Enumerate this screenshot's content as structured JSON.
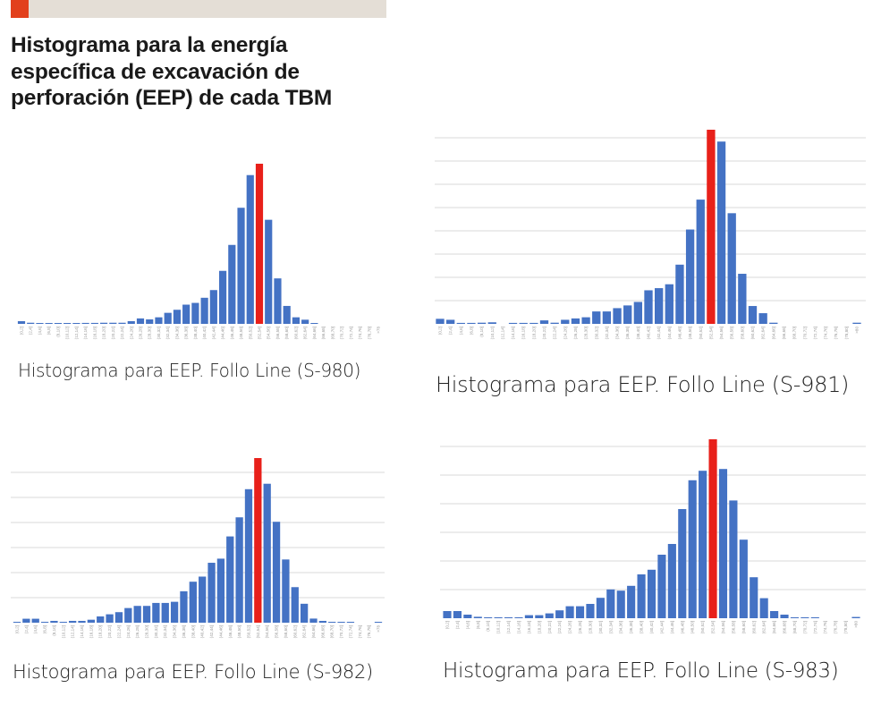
{
  "header": {
    "accent_color": "#e2401c",
    "title_lines": [
      "Histograma para la energía",
      "específica de excavación de",
      "perforación (EEP) de cada TBM"
    ]
  },
  "colors": {
    "bar": "#4472c4",
    "highlight": "#e8201a",
    "grid": "#d9d9d9",
    "tick_label": "#9a9a9a"
  },
  "captions": [
    "Histograma para EEP. Follo Line (S-980)",
    "Histograma para EEP. Follo Line (S-981)",
    "Histograma para EEP. Follo Line (S-982)",
    "Histograma para EEP. Follo Line (S-983)"
  ],
  "chart_data": [
    {
      "type": "bar",
      "title": "Histograma para EEP. Follo Line (S-980)",
      "xlabel": "",
      "ylabel": "",
      "highlight_index": 26,
      "grid": false,
      "categories": [
        "(0,2]",
        "(2,4]",
        "(4,6]",
        "(6,8]",
        "(8,10]",
        "(10,12]",
        "(12,14]",
        "(14,16]",
        "(16,18]",
        "(18,20]",
        "(20,22]",
        "(22,24]",
        "(24,26]",
        "(26,28]",
        "(28,30]",
        "(30,32]",
        "(32,34]",
        "(34,36]",
        "(36,38]",
        "(38,40]",
        "(40,42]",
        "(42,44]",
        "(44,46]",
        "(46,48]",
        "(48,50]",
        "(50,52]",
        "(52,54]",
        "(54,56]",
        "(56,58]",
        "(58,60]",
        "(60,62]",
        "(62,64]",
        "(64,66]",
        "(66,68]",
        "(68,70]",
        "(70,72]",
        "(72,74]",
        "(74,76]",
        "(76,78]",
        ">78"
      ],
      "values": [
        1.7,
        0.7,
        0.2,
        0.4,
        0.2,
        0.2,
        0.2,
        0.6,
        0.6,
        0.7,
        0.7,
        0.7,
        1.7,
        3.4,
        2.8,
        4.1,
        6.9,
        8.8,
        12,
        13.1,
        16.3,
        21.1,
        33.1,
        49.3,
        72.5,
        92.9,
        100,
        65,
        28.4,
        11.2,
        4.1,
        2.6,
        0.2,
        0,
        0,
        0,
        0,
        0,
        0,
        0
      ],
      "ylim": [
        0,
        100
      ]
    },
    {
      "type": "bar",
      "title": "Histograma para EEP. Follo Line (S-981)",
      "xlabel": "",
      "ylabel": "",
      "highlight_index": 26,
      "grid": true,
      "categories": [
        "(0,2]",
        "(2,4]",
        "(4,6]",
        "(6,8]",
        "(8,10]",
        "(10,12]",
        "(12,14]",
        "(14,16]",
        "(16,18]",
        "(18,20]",
        "(20,22]",
        "(22,24]",
        "(24,26]",
        "(26,28]",
        "(28,30]",
        "(30,32]",
        "(32,34]",
        "(34,36]",
        "(36,38]",
        "(38,40]",
        "(40,42]",
        "(42,44]",
        "(44,46]",
        "(46,48]",
        "(48,50]",
        "(50,52]",
        "(52,54]",
        "(54,56]",
        "(56,58]",
        "(58,60]",
        "(60,62]",
        "(62,64]",
        "(64,66]",
        "(66,68]",
        "(68,70]",
        "(70,72]",
        "(72,74]",
        "(74,76]",
        "(76,78]",
        "(78,80]",
        ">80"
      ],
      "values": [
        2.6,
        2.1,
        0.5,
        0.5,
        0.6,
        0.8,
        0,
        0.5,
        0.5,
        0.5,
        1.8,
        0.6,
        2.1,
        2.8,
        3.4,
        6.4,
        6.4,
        8.1,
        9.5,
        11.3,
        17.3,
        18.4,
        20.4,
        30.5,
        48.6,
        64,
        100,
        93.9,
        57,
        25.8,
        9.2,
        5.5,
        0.6,
        0,
        0,
        0,
        0,
        0,
        0,
        0,
        0.6
      ],
      "ylim": [
        0,
        100
      ]
    },
    {
      "type": "bar",
      "title": "Histograma para EEP. Follo Line (S-982)",
      "xlabel": "",
      "ylabel": "",
      "highlight_index": 26,
      "grid": true,
      "categories": [
        "(0,2]",
        "(2,4]",
        "(4,6]",
        "(6,8]",
        "(8,10]",
        "(10,12]",
        "(12,14]",
        "(14,16]",
        "(16,18]",
        "(18,20]",
        "(20,22]",
        "(22,24]",
        "(24,26]",
        "(26,28]",
        "(28,30]",
        "(30,32]",
        "(32,34]",
        "(34,36]",
        "(36,38]",
        "(38,40]",
        "(40,42]",
        "(42,44]",
        "(44,46]",
        "(46,48]",
        "(48,50]",
        "(50,52]",
        "(52,54]",
        "(54,56]",
        "(56,58]",
        "(58,60]",
        "(60,62]",
        "(62,64]",
        "(64,66]",
        "(66,68]",
        "(68,70]",
        "(70,72]",
        "(72,74]",
        "(74,76]",
        "(76,78]",
        ">78"
      ],
      "values": [
        0.5,
        2.4,
        2.4,
        0.5,
        1.1,
        0.5,
        1.1,
        1.1,
        1.8,
        3.8,
        5.1,
        6.4,
        8.9,
        10.2,
        10.2,
        12,
        12,
        12.7,
        19.1,
        24.9,
        28,
        36.4,
        38.9,
        52.4,
        64,
        81.1,
        100,
        84.4,
        61.3,
        38.4,
        21.6,
        11.5,
        2.5,
        1.1,
        0.5,
        0.5,
        0.5,
        0,
        0,
        0.5
      ],
      "ylim": [
        0,
        100
      ]
    },
    {
      "type": "bar",
      "title": "Histograma para EEP. Follo Line (S-983)",
      "xlabel": "",
      "ylabel": "",
      "highlight_index": 26,
      "grid": true,
      "categories": [
        "(0,2]",
        "(2,4]",
        "(4,6]",
        "(6,8]",
        "(8,10]",
        "(10,12]",
        "(12,14]",
        "(14,16]",
        "(16,18]",
        "(18,20]",
        "(20,22]",
        "(22,24]",
        "(24,26]",
        "(26,28]",
        "(28,30]",
        "(30,32]",
        "(32,34]",
        "(34,36]",
        "(36,38]",
        "(38,40]",
        "(40,42]",
        "(42,44]",
        "(44,46]",
        "(46,48]",
        "(48,50]",
        "(50,52]",
        "(52,54]",
        "(54,56]",
        "(56,58]",
        "(58,60]",
        "(60,62]",
        "(62,64]",
        "(64,66]",
        "(66,68]",
        "(68,70]",
        "(70,72]",
        "(72,74]",
        "(74,76]",
        "(76,78]",
        "(78,80]",
        ">80"
      ],
      "values": [
        4,
        4,
        2,
        0.8,
        0.2,
        0.2,
        0.3,
        0.2,
        1.7,
        1.7,
        2.7,
        4.4,
        6.7,
        6.7,
        8,
        11.4,
        16.1,
        15.4,
        18.1,
        24.5,
        27.1,
        35.5,
        41.5,
        61,
        77.1,
        82.4,
        100,
        83.4,
        65.8,
        43.9,
        22.9,
        11.2,
        4,
        2,
        0.3,
        0.3,
        0.3,
        0,
        0,
        0,
        0.7
      ],
      "ylim": [
        0,
        100
      ]
    }
  ]
}
